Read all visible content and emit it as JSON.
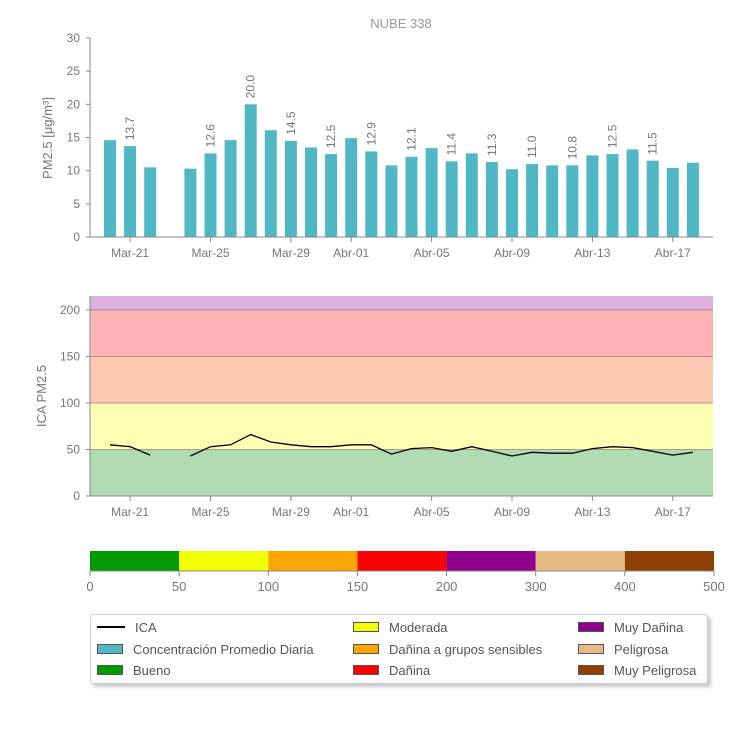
{
  "chart_data": [
    {
      "type": "bar",
      "title": "NUBE 338",
      "ylabel": "PM2.5 [μg/m³]",
      "ylim": [
        0,
        30
      ],
      "yticks": [
        0,
        5,
        10,
        15,
        20,
        25,
        30
      ],
      "x_tick_labels": [
        "Mar-21",
        "Mar-25",
        "Mar-29",
        "Abr-01",
        "Abr-05",
        "Abr-09",
        "Abr-13",
        "Abr-17"
      ],
      "series": [
        {
          "name": "Concentración Promedio Diaria",
          "color": "#4fb8c4",
          "values": [
            14.6,
            13.7,
            10.5,
            null,
            10.3,
            12.6,
            14.6,
            20.0,
            16.1,
            14.5,
            13.5,
            12.5,
            14.9,
            12.9,
            10.8,
            12.1,
            13.4,
            11.4,
            12.6,
            11.3,
            10.2,
            11.0,
            10.8,
            10.8,
            12.3,
            12.5,
            13.2,
            11.5,
            10.4,
            11.2
          ]
        }
      ],
      "data_labels": [
        "",
        "13.7",
        "",
        "",
        "",
        "12.6",
        "",
        "20.0",
        "",
        "14.5",
        "",
        "12.5",
        "",
        "12.9",
        "",
        "12.1",
        "",
        "11.4",
        "",
        "11.3",
        "",
        "11.0",
        "",
        "10.8",
        "",
        "12.5",
        "",
        "11.5",
        "",
        ""
      ]
    },
    {
      "type": "line",
      "ylabel": "ICA PM2.5",
      "ylim": [
        0,
        215
      ],
      "yticks": [
        0,
        50,
        100,
        150,
        200
      ],
      "x_tick_labels": [
        "Mar-21",
        "Mar-25",
        "Mar-29",
        "Abr-01",
        "Abr-05",
        "Abr-09",
        "Abr-13",
        "Abr-17"
      ],
      "bands": [
        {
          "from": 0,
          "to": 50,
          "color": "#b3dbb3"
        },
        {
          "from": 50,
          "to": 100,
          "color": "#fefeb3"
        },
        {
          "from": 100,
          "to": 150,
          "color": "#ffc8b0"
        },
        {
          "from": 150,
          "to": 200,
          "color": "#ffb3b3"
        },
        {
          "from": 200,
          "to": 215,
          "color": "#ddb0dd"
        }
      ],
      "series": [
        {
          "name": "ICA",
          "color": "#000000",
          "values": [
            55,
            53,
            44,
            null,
            43,
            53,
            55,
            66,
            58,
            55,
            53,
            53,
            55,
            55,
            45,
            51,
            52,
            48,
            53,
            48,
            43,
            47,
            46,
            46,
            51,
            53,
            52,
            48,
            44,
            47
          ]
        }
      ]
    }
  ],
  "scale": {
    "ticks": [
      "0",
      "50",
      "100",
      "150",
      "200",
      "300",
      "400",
      "500"
    ],
    "segments": [
      {
        "label": "Bueno",
        "color": "#009900"
      },
      {
        "label": "Moderada",
        "color": "#f2ff00"
      },
      {
        "label": "Dañina a grupos sensibles",
        "color": "#ffa500"
      },
      {
        "label": "Dañina",
        "color": "#ff0000"
      },
      {
        "label": "Muy Dañina",
        "color": "#8f008f"
      },
      {
        "label": "Peligrosa",
        "color": "#e6bb85"
      },
      {
        "label": "Muy Peligrosa",
        "color": "#8f4000"
      }
    ]
  },
  "legend": {
    "ica": "ICA",
    "concentration": "Concentración Promedio Diaria",
    "concentration_color": "#4fb8c4",
    "bueno": "Bueno",
    "bueno_color": "#009900",
    "moderada": "Moderada",
    "moderada_color": "#f2ff00",
    "sensibles": "Dañina a grupos sensibles",
    "sensibles_color": "#ffa500",
    "danina": "Dañina",
    "danina_color": "#ff0000",
    "muy_danina": "Muy Dañina",
    "muy_danina_color": "#8f008f",
    "peligrosa": "Peligrosa",
    "peligrosa_color": "#e6bb85",
    "muy_peligrosa": "Muy Peligrosa",
    "muy_peligrosa_color": "#8f4000"
  }
}
